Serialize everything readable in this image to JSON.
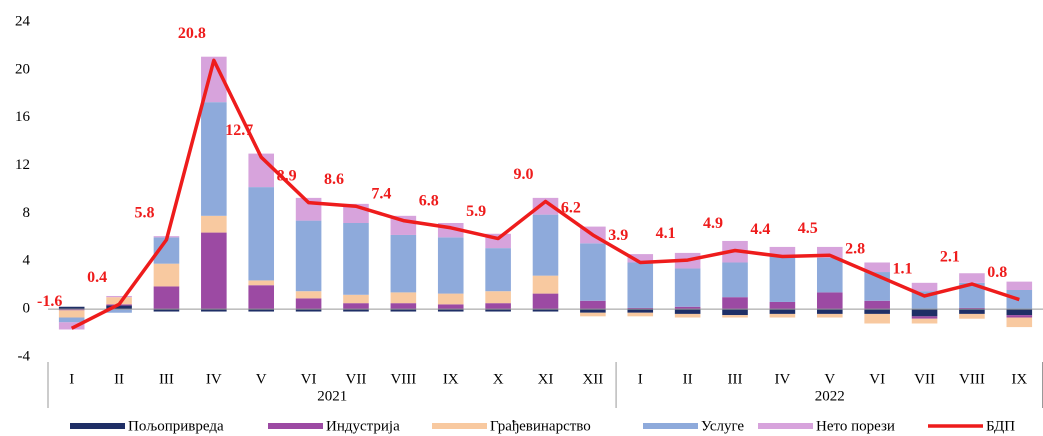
{
  "chart_data": {
    "type": "stacked-bar-line",
    "categories": [
      "I",
      "II",
      "III",
      "IV",
      "V",
      "VI",
      "VII",
      "VIII",
      "IX",
      "X",
      "XI",
      "XII",
      "I",
      "II",
      "III",
      "IV",
      "V",
      "VI",
      "VII",
      "VIII",
      "IX"
    ],
    "groups": [
      "2021",
      "2022"
    ],
    "series": [
      {
        "name": "Пољопривреда",
        "color": "#1f2f66",
        "values": [
          0.2,
          0.3,
          -0.2,
          -0.2,
          -0.2,
          -0.2,
          -0.2,
          -0.2,
          -0.2,
          -0.2,
          -0.2,
          -0.3,
          -0.3,
          -0.4,
          -0.5,
          -0.4,
          -0.4,
          -0.4,
          -0.6,
          -0.4,
          -0.5
        ]
      },
      {
        "name": "Индустрија",
        "color": "#9c4aa3",
        "values": [
          -0.1,
          0.1,
          1.9,
          6.4,
          2.0,
          0.9,
          0.5,
          0.5,
          0.4,
          0.5,
          1.3,
          0.7,
          0.1,
          0.2,
          1.0,
          0.6,
          1.4,
          0.7,
          -0.2,
          0.1,
          -0.2
        ]
      },
      {
        "name": "Грађевинарство",
        "color": "#f8c9a0",
        "values": [
          -0.6,
          0.6,
          1.9,
          1.4,
          0.4,
          0.6,
          0.7,
          0.9,
          0.9,
          1.0,
          1.5,
          -0.3,
          -0.3,
          -0.3,
          -0.2,
          -0.3,
          -0.3,
          -0.8,
          -0.4,
          -0.4,
          -0.8
        ]
      },
      {
        "name": "Услуге",
        "color": "#8eaadb",
        "values": [
          -0.4,
          -0.3,
          2.2,
          9.5,
          7.8,
          5.9,
          6.0,
          4.8,
          4.7,
          3.6,
          5.1,
          4.8,
          3.8,
          3.2,
          2.9,
          3.8,
          2.9,
          2.4,
          1.5,
          2.1,
          1.6
        ]
      },
      {
        "name": "Нето порези",
        "color": "#d7a3dc",
        "values": [
          -0.6,
          0.1,
          0.1,
          3.8,
          2.8,
          1.9,
          1.6,
          1.6,
          1.2,
          1.2,
          1.4,
          1.4,
          0.7,
          1.3,
          1.8,
          0.8,
          0.9,
          0.8,
          0.7,
          0.8,
          0.7
        ]
      },
      {
        "name": "БДП",
        "color": "#ee1c1c",
        "type": "line",
        "values": [
          -1.6,
          0.4,
          5.8,
          20.8,
          12.7,
          8.9,
          8.6,
          7.4,
          6.8,
          5.9,
          9.0,
          6.2,
          3.9,
          4.1,
          4.9,
          4.4,
          4.5,
          2.8,
          1.1,
          2.1,
          0.8
        ],
        "value_labels": [
          "-1.6",
          "0.4",
          "5.8",
          "20.8",
          "12.7",
          "8.9",
          "8.6",
          "7.4",
          "6.8",
          "5.9",
          "9.0",
          "6.2",
          "3.9",
          "4.1",
          "4.9",
          "4.4",
          "4.5",
          "2.8",
          "1.1",
          "2.1",
          "0.8"
        ]
      }
    ],
    "ylim": [
      -4,
      24
    ],
    "yticks": [
      -4,
      0,
      4,
      8,
      12,
      16,
      20,
      24
    ],
    "grid": false,
    "legend": "bottom"
  }
}
